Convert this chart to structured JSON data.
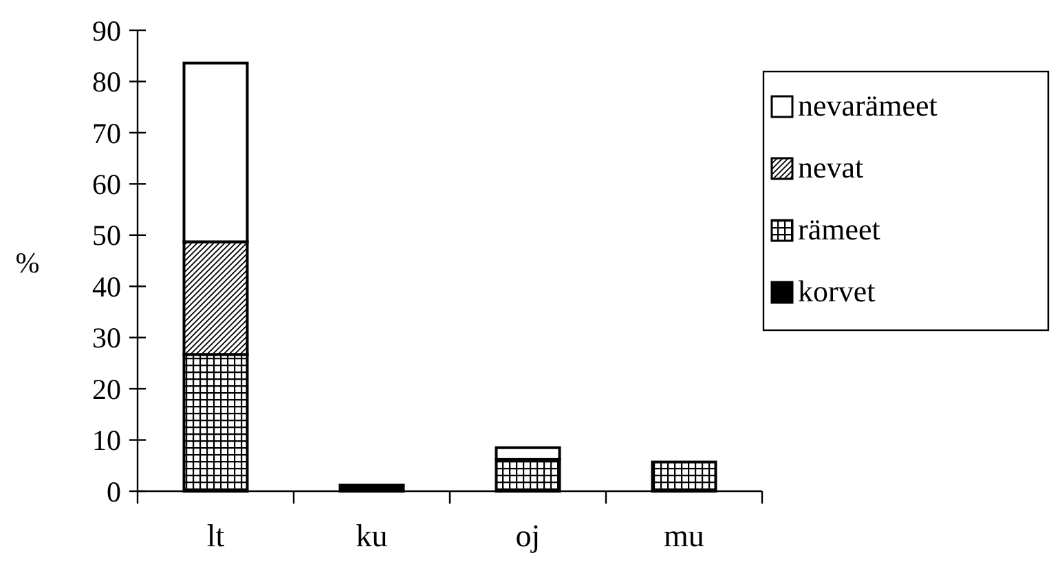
{
  "chart_data": {
    "type": "bar",
    "stacked": true,
    "ylabel": "%",
    "categories": [
      "lt",
      "ku",
      "oj",
      "mu"
    ],
    "series": [
      {
        "name": "korvet",
        "color": "#000000",
        "values": [
          0,
          1.2,
          0,
          0
        ]
      },
      {
        "name": "rämeet",
        "color": "#000000",
        "values": [
          26.7,
          0,
          6.2,
          5.7
        ]
      },
      {
        "name": "nevat",
        "color": "#000000",
        "values": [
          22.0,
          0,
          0,
          0
        ]
      },
      {
        "name": "nevarämeet",
        "color": "#ffffff",
        "values": [
          34.9,
          0,
          2.3,
          0
        ]
      }
    ],
    "ylim": [
      0,
      90
    ],
    "yticks": [
      0,
      10,
      20,
      30,
      40,
      50,
      60,
      70,
      80,
      90
    ],
    "legend": "right",
    "grid": false
  }
}
